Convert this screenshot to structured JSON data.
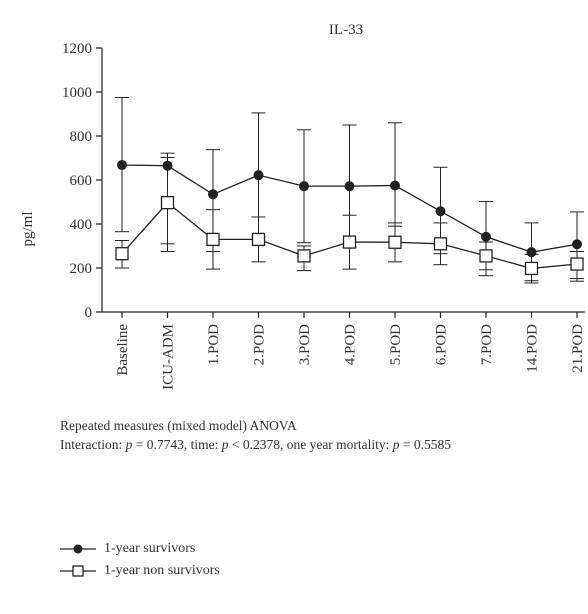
{
  "chart_data": {
    "type": "line",
    "title": "IL-33",
    "ylabel": "pg/ml",
    "xlabel": "",
    "ylim": [
      0,
      1200
    ],
    "yticks": [
      0,
      200,
      400,
      600,
      800,
      1000,
      1200
    ],
    "categories": [
      "Baseline",
      "ICU-ADM",
      "1.POD",
      "2.POD",
      "3.POD",
      "4.POD",
      "5.POD",
      "6.POD",
      "7.POD",
      "14.POD",
      "21.POD"
    ],
    "series": [
      {
        "name": "1-year survivors",
        "marker": "filled-circle",
        "color": "#222222",
        "values": [
          668,
          665,
          535,
          622,
          572,
          572,
          575,
          458,
          342,
          272,
          308
        ],
        "err_low": [
          365,
          310,
          195,
          342,
          315,
          295,
          390,
          265,
          192,
          142,
          152
        ],
        "err_high": [
          975,
          722,
          738,
          905,
          828,
          850,
          860,
          658,
          502,
          405,
          455
        ]
      },
      {
        "name": "1-year non survivors",
        "marker": "open-square",
        "color": "#222222",
        "values": [
          265,
          497,
          330,
          330,
          255,
          318,
          317,
          310,
          255,
          198,
          218
        ],
        "err_low": [
          200,
          275,
          275,
          228,
          188,
          195,
          228,
          215,
          165,
          132,
          140
        ],
        "err_high": [
          325,
          702,
          465,
          432,
          300,
          440,
          405,
          405,
          318,
          262,
          275
        ]
      }
    ],
    "grid": false,
    "legend": "bottom-left"
  },
  "notes": {
    "line1": "Repeated measures (mixed model) ANOVA",
    "line2_a": "Interaction: ",
    "line2_p1": "p",
    "line2_b": " = 0.7743, time: ",
    "line2_p2": "p",
    "line2_c": " < 0.2378, one year mortality: ",
    "line2_p3": "p",
    "line2_d": " = 0.5585"
  }
}
